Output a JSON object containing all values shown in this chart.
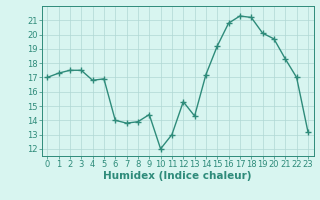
{
  "x": [
    0,
    1,
    2,
    3,
    4,
    5,
    6,
    7,
    8,
    9,
    10,
    11,
    12,
    13,
    14,
    15,
    16,
    17,
    18,
    19,
    20,
    21,
    22,
    23
  ],
  "y": [
    17.0,
    17.3,
    17.5,
    17.5,
    16.8,
    16.9,
    14.0,
    13.8,
    13.9,
    14.4,
    12.0,
    13.0,
    15.3,
    14.3,
    17.2,
    19.2,
    20.8,
    21.3,
    21.2,
    20.1,
    19.7,
    18.3,
    17.0,
    13.2
  ],
  "line_color": "#2e8b7a",
  "marker": "+",
  "marker_size": 4,
  "marker_edge_width": 1.0,
  "background_color": "#d8f5f0",
  "grid_color": "#b0d8d4",
  "xlabel": "Humidex (Indice chaleur)",
  "xlabel_fontsize": 7.5,
  "xlabel_fontweight": "bold",
  "ylim": [
    11.5,
    22.0
  ],
  "xlim": [
    -0.5,
    23.5
  ],
  "yticks": [
    12,
    13,
    14,
    15,
    16,
    17,
    18,
    19,
    20,
    21
  ],
  "xticks": [
    0,
    1,
    2,
    3,
    4,
    5,
    6,
    7,
    8,
    9,
    10,
    11,
    12,
    13,
    14,
    15,
    16,
    17,
    18,
    19,
    20,
    21,
    22,
    23
  ],
  "tick_fontsize": 6,
  "line_width": 1.0,
  "fig_width": 3.2,
  "fig_height": 2.0,
  "dpi": 100
}
